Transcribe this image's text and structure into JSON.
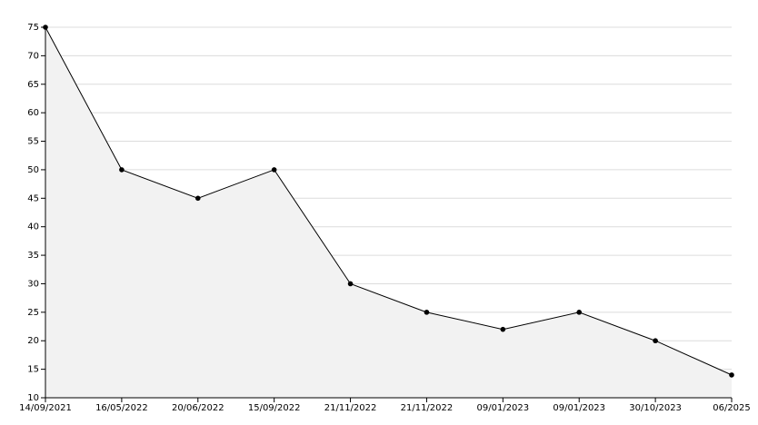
{
  "chart_data": {
    "type": "line",
    "categories": [
      "14/09/2021",
      "16/05/2022",
      "20/06/2022",
      "15/09/2022",
      "21/11/2022",
      "21/11/2022",
      "09/01/2023",
      "09/01/2023",
      "30/10/2023",
      "06/2025"
    ],
    "values": [
      75,
      50,
      45,
      50,
      30,
      25,
      22,
      25,
      20,
      14
    ],
    "color": "#000000",
    "fill": "#f2f2f2",
    "ylim": [
      10,
      75
    ],
    "yticks": [
      10,
      15,
      20,
      25,
      30,
      35,
      40,
      45,
      50,
      55,
      60,
      65,
      70,
      75
    ],
    "grid": true
  }
}
